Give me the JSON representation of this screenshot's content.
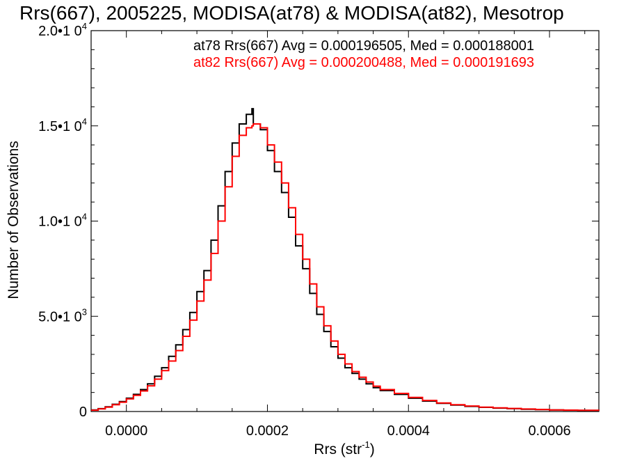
{
  "chart_data": {
    "type": "line",
    "title": "Rrs(667), 2005225, MODISA(at78) & MODISA(at82), Mesotrop",
    "xlabel": "Rrs (str",
    "xlabel_sup": "-1",
    "xlabel_close": ")",
    "ylabel": "Number of Observations",
    "xlim": [
      -5e-05,
      0.00067
    ],
    "ylim": [
      0,
      20000
    ],
    "grid": false,
    "legend_position": "top-right",
    "x_ticks": [
      {
        "value": 0.0,
        "label": "0.0000"
      },
      {
        "value": 0.0002,
        "label": "0.0002"
      },
      {
        "value": 0.0004,
        "label": "0.0004"
      },
      {
        "value": 0.0006,
        "label": "0.0006"
      }
    ],
    "y_ticks": [
      {
        "value": 0,
        "base": "0",
        "exp": ""
      },
      {
        "value": 5000,
        "base": "5.0•1 0",
        "exp": "3"
      },
      {
        "value": 10000,
        "base": "1.0•1 0",
        "exp": "4"
      },
      {
        "value": 15000,
        "base": "1.5•1 0",
        "exp": "4"
      },
      {
        "value": 20000,
        "base": "2.0•1 0",
        "exp": "4"
      }
    ],
    "x": [
      -5e-05,
      -4e-05,
      -3e-05,
      -2e-05,
      -1e-05,
      0.0,
      1e-05,
      2e-05,
      3e-05,
      4e-05,
      5e-05,
      6e-05,
      7e-05,
      8e-05,
      9e-05,
      0.0001,
      0.00011,
      0.00012,
      0.00013,
      0.00014,
      0.00015,
      0.00016,
      0.00017,
      0.000178,
      0.00018,
      0.00019,
      0.0002,
      0.00021,
      0.00022,
      0.00023,
      0.00024,
      0.00025,
      0.00026,
      0.00027,
      0.00028,
      0.00029,
      0.0003,
      0.00031,
      0.00032,
      0.00033,
      0.00034,
      0.00035,
      0.00036,
      0.00038,
      0.0004,
      0.00042,
      0.00044,
      0.00046,
      0.00048,
      0.0005,
      0.00052,
      0.00054,
      0.00056,
      0.00058,
      0.0006,
      0.00062,
      0.00064,
      0.00067
    ],
    "series": [
      {
        "name": "at78 Rrs(667) Avg = 0.000196505, Med = 0.000188001",
        "color": "#000000",
        "values": [
          80,
          150,
          250,
          380,
          520,
          700,
          900,
          1150,
          1450,
          1850,
          2300,
          2900,
          3500,
          4300,
          5200,
          6300,
          7400,
          9000,
          10800,
          12600,
          14100,
          15100,
          15600,
          15900,
          15100,
          14800,
          13700,
          12600,
          11500,
          10200,
          8700,
          7500,
          6200,
          5100,
          4200,
          3400,
          2800,
          2300,
          2000,
          1700,
          1450,
          1250,
          1100,
          900,
          700,
          550,
          430,
          340,
          270,
          220,
          180,
          150,
          120,
          100,
          80,
          70,
          60,
          50
        ]
      },
      {
        "name": "at82 Rrs(667) Avg = 0.000200488, Med = 0.000191693",
        "color": "#ff0000",
        "values": [
          70,
          140,
          230,
          360,
          490,
          660,
          850,
          1080,
          1350,
          1700,
          2150,
          2650,
          3200,
          3950,
          4800,
          5800,
          6900,
          8300,
          10000,
          11800,
          13400,
          14500,
          14900,
          15000,
          15100,
          14900,
          14000,
          13100,
          12000,
          10700,
          9300,
          8000,
          6700,
          5500,
          4500,
          3700,
          3000,
          2500,
          2100,
          1800,
          1550,
          1330,
          1150,
          950,
          740,
          580,
          450,
          360,
          290,
          230,
          190,
          160,
          130,
          105,
          85,
          72,
          62,
          52
        ]
      }
    ]
  }
}
